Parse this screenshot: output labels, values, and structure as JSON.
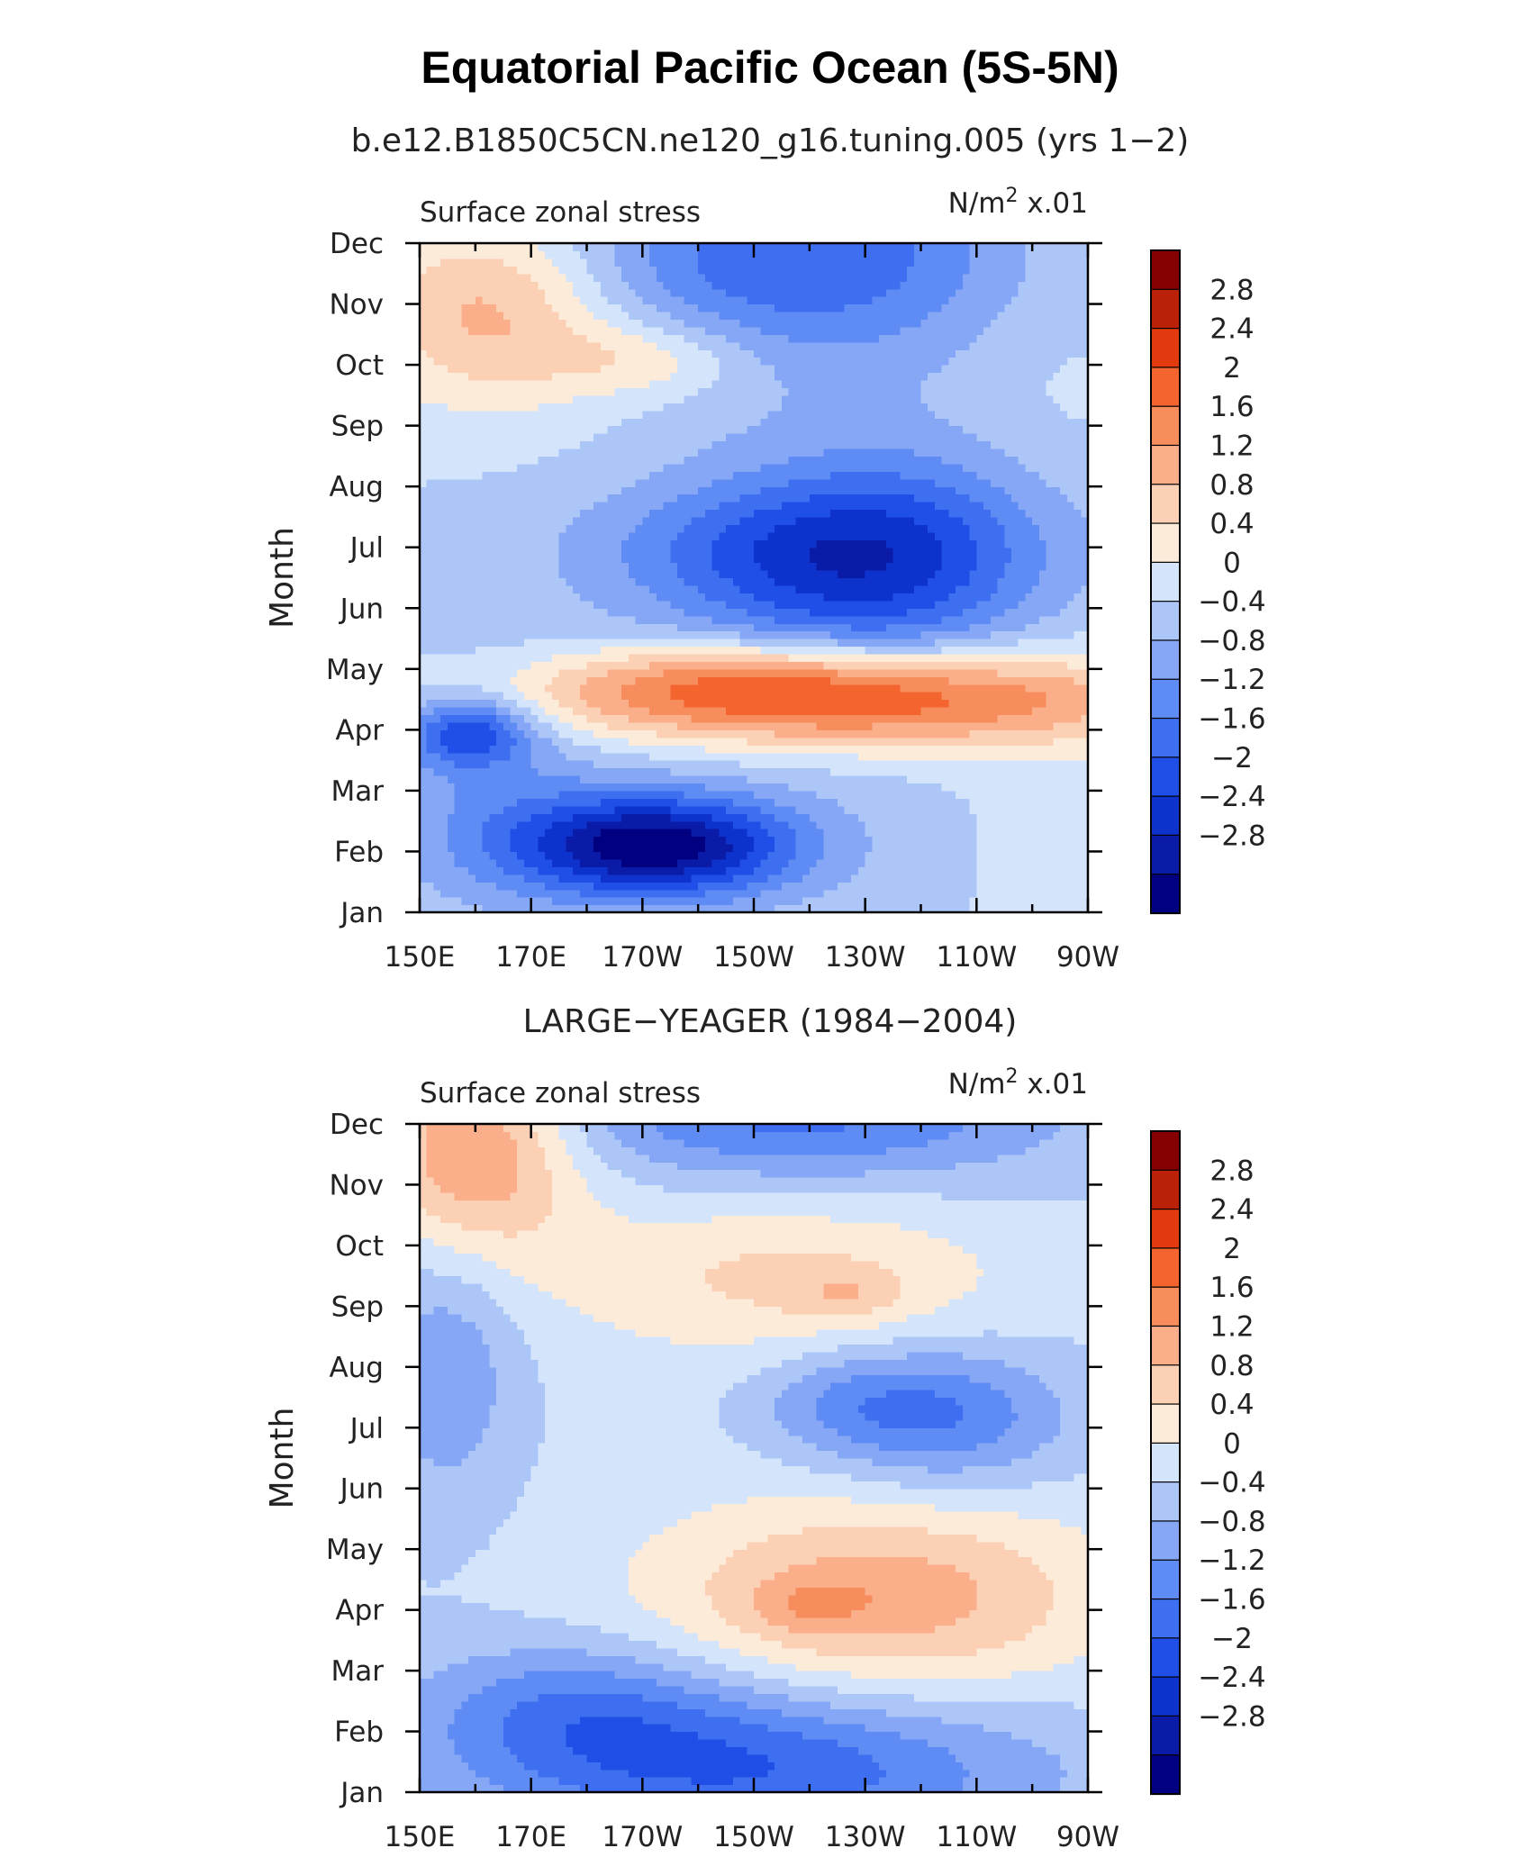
{
  "figure": {
    "title": "Equatorial Pacific Ocean (5S-5N)"
  },
  "chart_data": [
    {
      "type": "heatmap",
      "subtitle": "b.e12.B1850C5CN.ne120_g16.tuning.005 (yrs 1−2)",
      "left_label": "Surface zonal stress",
      "units": "N/m",
      "units_sup": "2",
      "units_scale": "x.01",
      "ylabel": "Month",
      "xlabel": "",
      "x_ticks": [
        "150E",
        "170E",
        "170W",
        "150W",
        "130W",
        "110W",
        "90W"
      ],
      "y_ticks": [
        "Jan",
        "Feb",
        "Mar",
        "Apr",
        "May",
        "Jun",
        "Jul",
        "Aug",
        "Sep",
        "Oct",
        "Nov",
        "Dec"
      ],
      "features": [
        {
          "x": 7,
          "y": 3.6,
          "sx": 4,
          "sy": 0.5,
          "a": 2.4,
          "r": 0.45
        },
        {
          "x": 8.8,
          "y": 3.05,
          "sx": 3,
          "sy": 0.45,
          "a": 0.6,
          "r": 0
        },
        {
          "x": 5.8,
          "y": 4.05,
          "sx": 2,
          "sy": 0.35,
          "a": 0.5,
          "r": 0
        },
        {
          "x": 4.2,
          "y": 1.1,
          "sx": 1.8,
          "sy": 0.6,
          "a": -3.1,
          "r": 0
        },
        {
          "x": 0.9,
          "y": 3.0,
          "sx": 0.8,
          "sy": 0.4,
          "a": -1.8,
          "r": 0
        },
        {
          "x": 1.2,
          "y": 2.2,
          "sx": 1.5,
          "sy": 1.5,
          "a": -0.6,
          "r": 0
        },
        {
          "x": 8.2,
          "y": 5.8,
          "sx": 2.4,
          "sy": 1.2,
          "a": -2.0,
          "r": 0.12
        },
        {
          "x": 5.8,
          "y": 6.0,
          "sx": 2.4,
          "sy": 0.7,
          "a": -0.6,
          "r": 0
        },
        {
          "x": 1.3,
          "y": 9.9,
          "sx": 1.6,
          "sy": 1.1,
          "a": 1.4,
          "r": 0
        },
        {
          "x": 4.1,
          "y": 9.1,
          "sx": 1.3,
          "sy": 0.45,
          "a": 0.8,
          "r": 0
        },
        {
          "x": 6.8,
          "y": 10.8,
          "sx": 2.8,
          "sy": 1.2,
          "a": -1.5,
          "r": 0
        },
        {
          "x": 11.4,
          "y": 6.0,
          "sx": 1.4,
          "sy": 6.0,
          "a": 0.3,
          "r": 0
        },
        {
          "x": 10,
          "y": 5.5,
          "sx": 5,
          "sy": 6,
          "a": -0.15,
          "r": 0
        }
      ]
    },
    {
      "type": "heatmap",
      "subtitle": "LARGE−YEAGER (1984−2004)",
      "left_label": "Surface zonal stress",
      "units": "N/m",
      "units_sup": "2",
      "units_scale": "x.01",
      "ylabel": "Month",
      "xlabel": "",
      "x_ticks": [
        "150E",
        "170E",
        "170W",
        "150W",
        "130W",
        "110W",
        "90W"
      ],
      "y_ticks": [
        "Jan",
        "Feb",
        "Mar",
        "Apr",
        "May",
        "Jun",
        "Jul",
        "Aug",
        "Sep",
        "Oct",
        "Nov",
        "Dec"
      ],
      "features": [
        {
          "x": 8.3,
          "y": 3.2,
          "sx": 2.8,
          "sy": 1.1,
          "a": 1.4,
          "r": 0
        },
        {
          "x": 7.0,
          "y": 3.1,
          "sx": 0.7,
          "sy": 0.3,
          "a": 0.5,
          "r": 0
        },
        {
          "x": 1.0,
          "y": 10.6,
          "sx": 1.3,
          "sy": 1.2,
          "a": 1.7,
          "r": 0
        },
        {
          "x": 6.5,
          "y": 8.5,
          "sx": 2.8,
          "sy": 0.9,
          "a": 0.8,
          "r": 0
        },
        {
          "x": 7.7,
          "y": 8.2,
          "sx": 0.7,
          "sy": 0.3,
          "a": 0.5,
          "r": 0
        },
        {
          "x": 6.0,
          "y": 0.4,
          "sx": 3.5,
          "sy": 0.9,
          "a": -1.6,
          "r": 0
        },
        {
          "x": 2.8,
          "y": 1.4,
          "sx": 2.0,
          "sy": 0.8,
          "a": -1.0,
          "r": 0
        },
        {
          "x": 0.5,
          "y": 7.0,
          "sx": 0.9,
          "sy": 1.6,
          "a": -0.8,
          "r": 0
        },
        {
          "x": 6.8,
          "y": 11.2,
          "sx": 3.2,
          "sy": 0.8,
          "a": -1.4,
          "r": 0
        },
        {
          "x": 9.5,
          "y": 6.2,
          "sx": 1.5,
          "sy": 0.8,
          "a": -1.2,
          "r": 0
        },
        {
          "x": 7.6,
          "y": 6.4,
          "sx": 1.2,
          "sy": 0.6,
          "a": -0.7,
          "r": 0
        },
        {
          "x": 5,
          "y": 6.5,
          "sx": 6,
          "sy": 5,
          "a": 0.1,
          "r": 0
        }
      ]
    }
  ],
  "colorbar": {
    "labels": [
      "2.8",
      "2.4",
      "2",
      "1.6",
      "1.2",
      "0.8",
      "0.4",
      "0",
      "−0.4",
      "−0.8",
      "−1.2",
      "−1.6",
      "−2",
      "−2.4",
      "−2.8"
    ],
    "thresholds": [
      -2.8,
      -2.4,
      -2.0,
      -1.6,
      -1.2,
      -0.8,
      -0.4,
      0.0,
      0.4,
      0.8,
      1.2,
      1.6,
      2.0,
      2.4,
      2.8
    ],
    "colors": [
      "#000080",
      "#0a1ba8",
      "#0d33cc",
      "#1f4fe6",
      "#3d6ff0",
      "#5f8cf4",
      "#85a7f6",
      "#adc6f8",
      "#d4e5fb",
      "#fdebda",
      "#fcd0b5",
      "#fbae8a",
      "#f78c5c",
      "#f3642f",
      "#e2390f",
      "#ba2107",
      "#850000"
    ]
  }
}
